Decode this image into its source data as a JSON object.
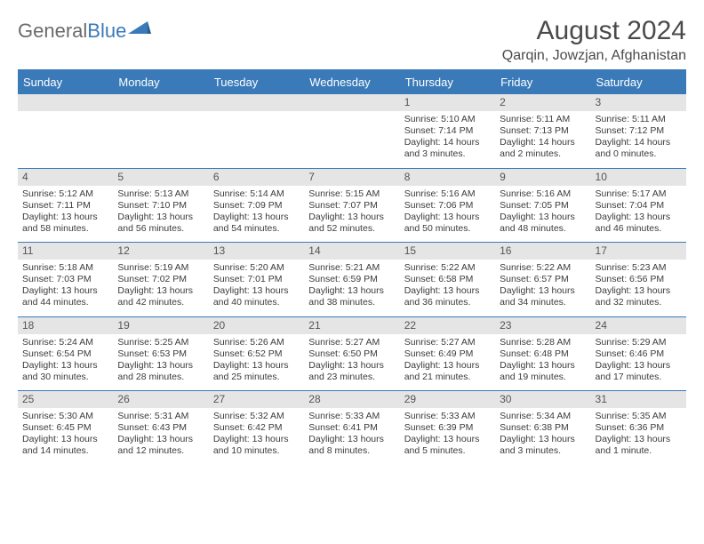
{
  "logo": {
    "word1": "General",
    "word2": "Blue"
  },
  "title": "August 2024",
  "location": "Qarqin, Jowzjan, Afghanistan",
  "colors": {
    "brand_blue": "#3a7ab8",
    "header_text": "#4a4a4a",
    "daynum_bg": "#e5e5e5",
    "body_text": "#3b3b3b",
    "logo_gray": "#6b6b6b"
  },
  "weekdays": [
    "Sunday",
    "Monday",
    "Tuesday",
    "Wednesday",
    "Thursday",
    "Friday",
    "Saturday"
  ],
  "weeks": [
    [
      {
        "n": "",
        "sr": "",
        "ss": "",
        "dl": ""
      },
      {
        "n": "",
        "sr": "",
        "ss": "",
        "dl": ""
      },
      {
        "n": "",
        "sr": "",
        "ss": "",
        "dl": ""
      },
      {
        "n": "",
        "sr": "",
        "ss": "",
        "dl": ""
      },
      {
        "n": "1",
        "sr": "Sunrise: 5:10 AM",
        "ss": "Sunset: 7:14 PM",
        "dl": "Daylight: 14 hours and 3 minutes."
      },
      {
        "n": "2",
        "sr": "Sunrise: 5:11 AM",
        "ss": "Sunset: 7:13 PM",
        "dl": "Daylight: 14 hours and 2 minutes."
      },
      {
        "n": "3",
        "sr": "Sunrise: 5:11 AM",
        "ss": "Sunset: 7:12 PM",
        "dl": "Daylight: 14 hours and 0 minutes."
      }
    ],
    [
      {
        "n": "4",
        "sr": "Sunrise: 5:12 AM",
        "ss": "Sunset: 7:11 PM",
        "dl": "Daylight: 13 hours and 58 minutes."
      },
      {
        "n": "5",
        "sr": "Sunrise: 5:13 AM",
        "ss": "Sunset: 7:10 PM",
        "dl": "Daylight: 13 hours and 56 minutes."
      },
      {
        "n": "6",
        "sr": "Sunrise: 5:14 AM",
        "ss": "Sunset: 7:09 PM",
        "dl": "Daylight: 13 hours and 54 minutes."
      },
      {
        "n": "7",
        "sr": "Sunrise: 5:15 AM",
        "ss": "Sunset: 7:07 PM",
        "dl": "Daylight: 13 hours and 52 minutes."
      },
      {
        "n": "8",
        "sr": "Sunrise: 5:16 AM",
        "ss": "Sunset: 7:06 PM",
        "dl": "Daylight: 13 hours and 50 minutes."
      },
      {
        "n": "9",
        "sr": "Sunrise: 5:16 AM",
        "ss": "Sunset: 7:05 PM",
        "dl": "Daylight: 13 hours and 48 minutes."
      },
      {
        "n": "10",
        "sr": "Sunrise: 5:17 AM",
        "ss": "Sunset: 7:04 PM",
        "dl": "Daylight: 13 hours and 46 minutes."
      }
    ],
    [
      {
        "n": "11",
        "sr": "Sunrise: 5:18 AM",
        "ss": "Sunset: 7:03 PM",
        "dl": "Daylight: 13 hours and 44 minutes."
      },
      {
        "n": "12",
        "sr": "Sunrise: 5:19 AM",
        "ss": "Sunset: 7:02 PM",
        "dl": "Daylight: 13 hours and 42 minutes."
      },
      {
        "n": "13",
        "sr": "Sunrise: 5:20 AM",
        "ss": "Sunset: 7:01 PM",
        "dl": "Daylight: 13 hours and 40 minutes."
      },
      {
        "n": "14",
        "sr": "Sunrise: 5:21 AM",
        "ss": "Sunset: 6:59 PM",
        "dl": "Daylight: 13 hours and 38 minutes."
      },
      {
        "n": "15",
        "sr": "Sunrise: 5:22 AM",
        "ss": "Sunset: 6:58 PM",
        "dl": "Daylight: 13 hours and 36 minutes."
      },
      {
        "n": "16",
        "sr": "Sunrise: 5:22 AM",
        "ss": "Sunset: 6:57 PM",
        "dl": "Daylight: 13 hours and 34 minutes."
      },
      {
        "n": "17",
        "sr": "Sunrise: 5:23 AM",
        "ss": "Sunset: 6:56 PM",
        "dl": "Daylight: 13 hours and 32 minutes."
      }
    ],
    [
      {
        "n": "18",
        "sr": "Sunrise: 5:24 AM",
        "ss": "Sunset: 6:54 PM",
        "dl": "Daylight: 13 hours and 30 minutes."
      },
      {
        "n": "19",
        "sr": "Sunrise: 5:25 AM",
        "ss": "Sunset: 6:53 PM",
        "dl": "Daylight: 13 hours and 28 minutes."
      },
      {
        "n": "20",
        "sr": "Sunrise: 5:26 AM",
        "ss": "Sunset: 6:52 PM",
        "dl": "Daylight: 13 hours and 25 minutes."
      },
      {
        "n": "21",
        "sr": "Sunrise: 5:27 AM",
        "ss": "Sunset: 6:50 PM",
        "dl": "Daylight: 13 hours and 23 minutes."
      },
      {
        "n": "22",
        "sr": "Sunrise: 5:27 AM",
        "ss": "Sunset: 6:49 PM",
        "dl": "Daylight: 13 hours and 21 minutes."
      },
      {
        "n": "23",
        "sr": "Sunrise: 5:28 AM",
        "ss": "Sunset: 6:48 PM",
        "dl": "Daylight: 13 hours and 19 minutes."
      },
      {
        "n": "24",
        "sr": "Sunrise: 5:29 AM",
        "ss": "Sunset: 6:46 PM",
        "dl": "Daylight: 13 hours and 17 minutes."
      }
    ],
    [
      {
        "n": "25",
        "sr": "Sunrise: 5:30 AM",
        "ss": "Sunset: 6:45 PM",
        "dl": "Daylight: 13 hours and 14 minutes."
      },
      {
        "n": "26",
        "sr": "Sunrise: 5:31 AM",
        "ss": "Sunset: 6:43 PM",
        "dl": "Daylight: 13 hours and 12 minutes."
      },
      {
        "n": "27",
        "sr": "Sunrise: 5:32 AM",
        "ss": "Sunset: 6:42 PM",
        "dl": "Daylight: 13 hours and 10 minutes."
      },
      {
        "n": "28",
        "sr": "Sunrise: 5:33 AM",
        "ss": "Sunset: 6:41 PM",
        "dl": "Daylight: 13 hours and 8 minutes."
      },
      {
        "n": "29",
        "sr": "Sunrise: 5:33 AM",
        "ss": "Sunset: 6:39 PM",
        "dl": "Daylight: 13 hours and 5 minutes."
      },
      {
        "n": "30",
        "sr": "Sunrise: 5:34 AM",
        "ss": "Sunset: 6:38 PM",
        "dl": "Daylight: 13 hours and 3 minutes."
      },
      {
        "n": "31",
        "sr": "Sunrise: 5:35 AM",
        "ss": "Sunset: 6:36 PM",
        "dl": "Daylight: 13 hours and 1 minute."
      }
    ]
  ]
}
